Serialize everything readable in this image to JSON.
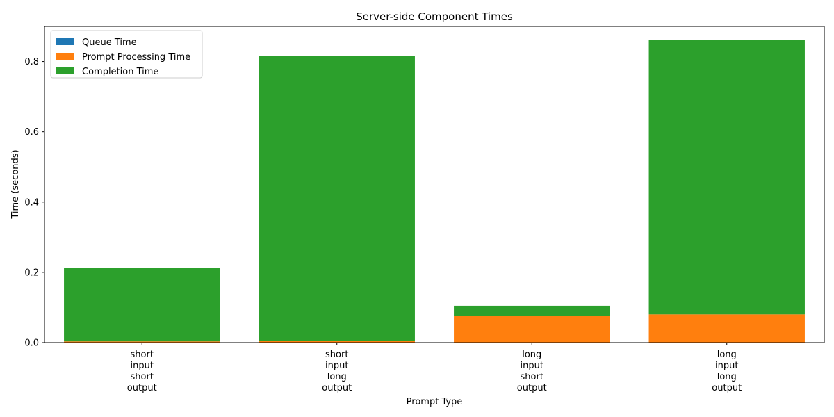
{
  "chart_data": {
    "type": "bar",
    "stacked": true,
    "title": "Server-side Component Times",
    "xlabel": "Prompt Type",
    "ylabel": "Time (seconds)",
    "categories": [
      [
        "short",
        "input",
        "short",
        "output"
      ],
      [
        "short",
        "input",
        "long",
        "output"
      ],
      [
        "long",
        "input",
        "short",
        "output"
      ],
      [
        "long",
        "input",
        "long",
        "output"
      ]
    ],
    "series": [
      {
        "name": "Queue Time",
        "color": "#1f77b4",
        "values": [
          0.0005,
          0.0005,
          0.0005,
          0.0005
        ]
      },
      {
        "name": "Prompt Processing Time",
        "color": "#ff7f0e",
        "values": [
          0.003,
          0.005,
          0.075,
          0.08
        ]
      },
      {
        "name": "Completion Time",
        "color": "#2ca02c",
        "values": [
          0.2095,
          0.811,
          0.0295,
          0.78
        ]
      }
    ],
    "ylim": [
      0,
      0.9
    ],
    "yticks": [
      "0.0",
      "0.2",
      "0.4",
      "0.6",
      "0.8"
    ],
    "ytick_values": [
      0,
      0.2,
      0.4,
      0.6,
      0.8
    ],
    "legend_position": "top-left",
    "grid": false
  }
}
